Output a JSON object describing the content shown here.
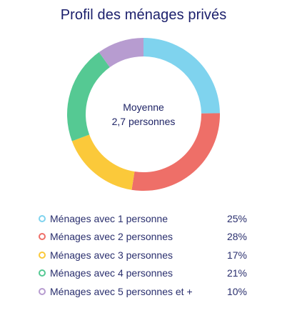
{
  "chart_data": {
    "type": "pie",
    "title": "Profil des ménages privés",
    "center_label": [
      "Moyenne",
      "2,7 personnes"
    ],
    "legend_position": "bottom",
    "categories": [
      "Ménages avec 1 personne",
      "Ménages avec 2 personnes",
      "Ménages avec 3 personnes",
      "Ménages avec 4 personnes",
      "Ménages avec 5 personnes et +"
    ],
    "values": [
      25,
      28,
      17,
      21,
      10
    ],
    "value_labels": [
      "25%",
      "28%",
      "17%",
      "21%",
      "10%"
    ],
    "colors": [
      "#7fd3ee",
      "#ee6f68",
      "#fbc93a",
      "#55c993",
      "#b79cd0"
    ]
  }
}
